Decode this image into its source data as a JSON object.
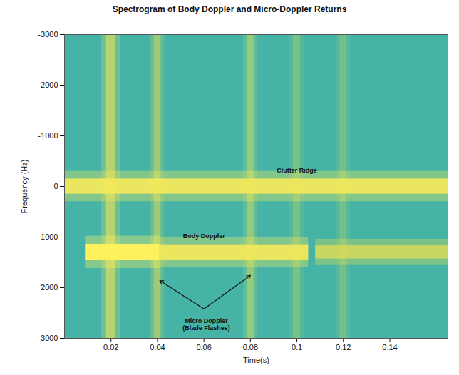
{
  "chart_data": {
    "type": "spectrogram",
    "title": "Spectrogram of Body Doppler and Micro-Doppler Returns",
    "xlabel": "Time(s)",
    "ylabel": "Frequency (Hz)",
    "xlim": [
      0,
      0.165
    ],
    "xticks": [
      0.02,
      0.04,
      0.06,
      0.08,
      0.1,
      0.12,
      0.14
    ],
    "ylim": [
      3000,
      -3000
    ],
    "yticks": [
      -3000,
      -2000,
      -1000,
      0,
      1000,
      2000,
      3000
    ],
    "ridges": [
      {
        "frequency": 0,
        "start": 0,
        "end": 0.165,
        "bandwidth": 300,
        "intensity": 0.8
      },
      {
        "frequency": 1300,
        "start": 0.009,
        "end": 0.041,
        "bandwidth": 320,
        "intensity": 1.0
      },
      {
        "frequency": 1300,
        "start": 0.041,
        "end": 0.105,
        "bandwidth": 300,
        "intensity": 0.8
      },
      {
        "frequency": 1300,
        "start": 0.108,
        "end": 0.165,
        "bandwidth": 260,
        "intensity": 0.45
      }
    ],
    "flashes": [
      {
        "time": 0.02,
        "width": 0.004,
        "intensity": 0.7
      },
      {
        "time": 0.04,
        "width": 0.003,
        "intensity": 0.55
      },
      {
        "time": 0.08,
        "width": 0.003,
        "intensity": 0.5
      },
      {
        "time": 0.1,
        "width": 0.003,
        "intensity": 0.35
      },
      {
        "time": 0.12,
        "width": 0.003,
        "intensity": 0.3
      }
    ],
    "annotations": [
      {
        "text": "Clutter Ridge",
        "x": 0.1,
        "y": -320
      },
      {
        "text": "Body Doppler",
        "x": 0.06,
        "y": 970
      },
      {
        "lines": [
          "Micro Doppler",
          "(Blade Flashes)"
        ],
        "x": 0.061,
        "y": 2720,
        "arrow_from": [
          0.06,
          2420
        ],
        "arrow_to": [
          [
            0.041,
            1860
          ],
          [
            0.08,
            1760
          ]
        ]
      }
    ]
  }
}
